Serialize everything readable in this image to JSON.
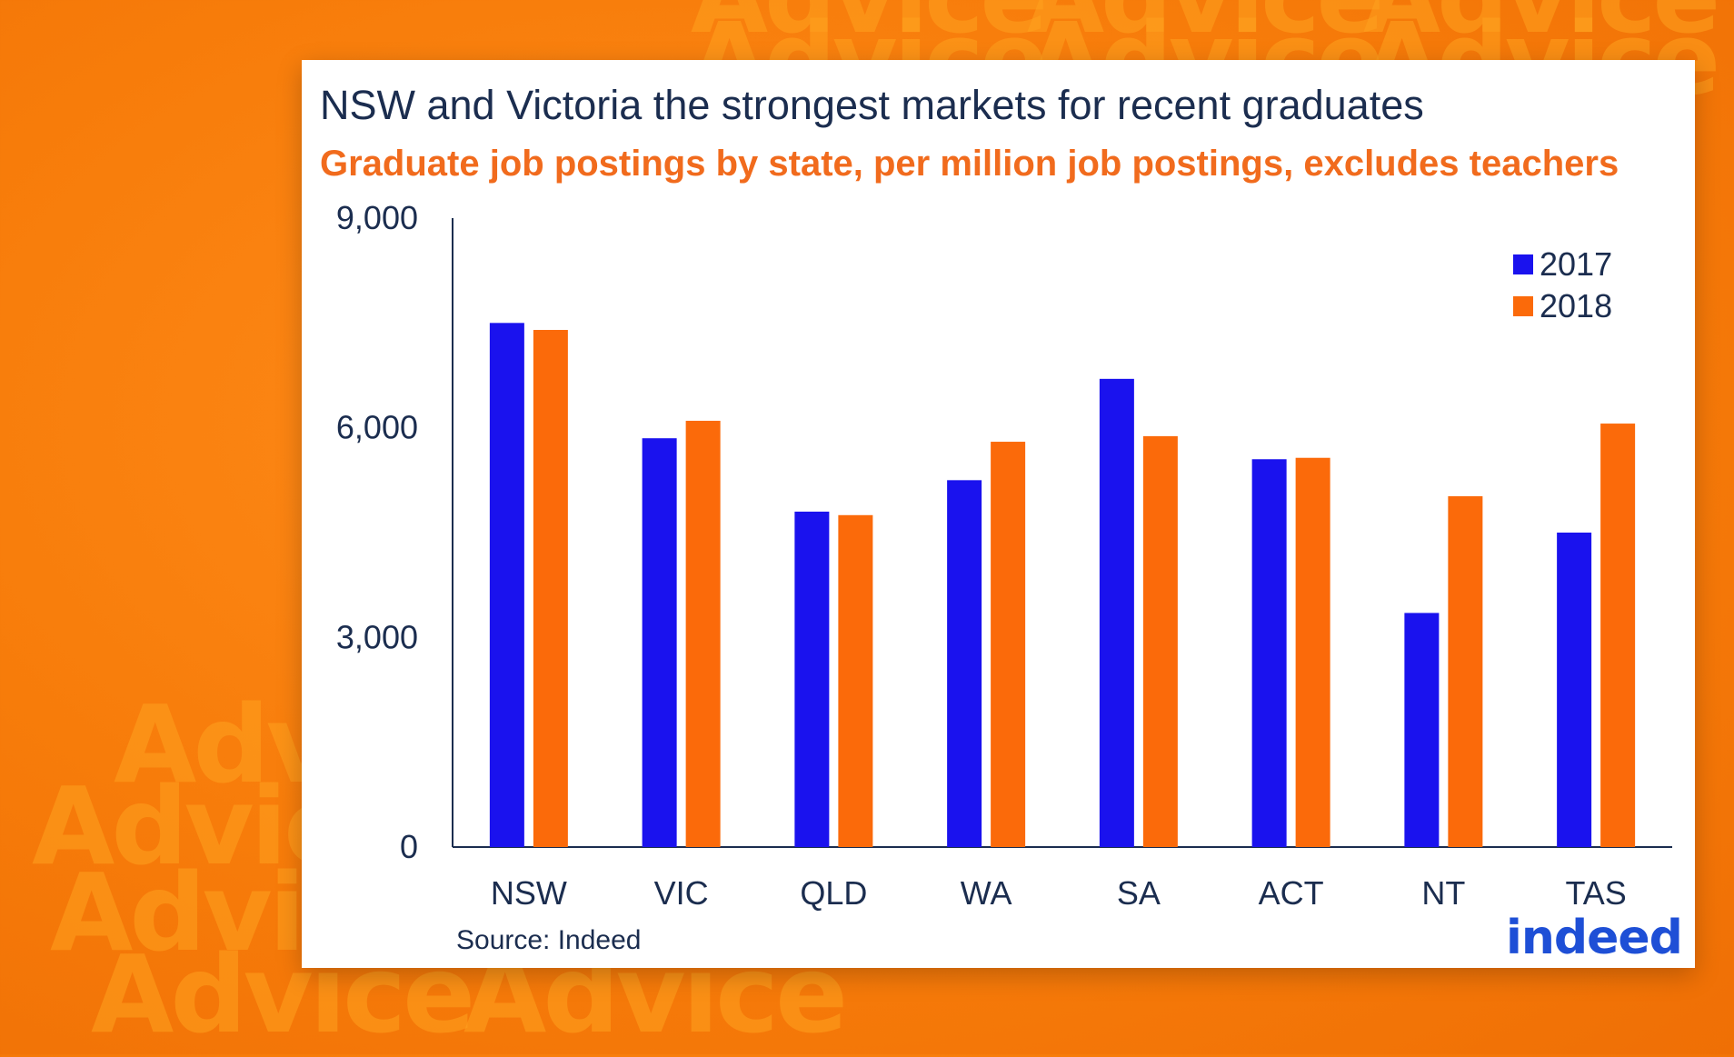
{
  "background_watermark": "Advice",
  "colors": {
    "series_2017": "#1a12ee",
    "series_2018": "#fb6a0a",
    "title": "#1b2d4f",
    "subtitle": "#f16b1d",
    "background": "#f77c0a"
  },
  "chart": {
    "title": "NSW and Victoria the strongest markets for recent graduates",
    "subtitle": "Graduate job postings by state, per million job postings, excludes teachers",
    "source": "Source: Indeed",
    "logo_text": "indeed"
  },
  "chart_data": {
    "type": "bar",
    "title": "NSW and Victoria the strongest markets for recent graduates",
    "subtitle": "Graduate job postings by state, per million job postings, excludes teachers",
    "categories": [
      "NSW",
      "VIC",
      "QLD",
      "WA",
      "SA",
      "ACT",
      "NT",
      "TAS"
    ],
    "series": [
      {
        "name": "2017",
        "values": [
          7500,
          5850,
          4800,
          5250,
          6700,
          5550,
          3350,
          4500
        ]
      },
      {
        "name": "2018",
        "values": [
          7400,
          6100,
          4750,
          5800,
          5880,
          5570,
          5020,
          6060
        ]
      }
    ],
    "ylim": [
      0,
      9000
    ],
    "yticks": [
      "0",
      "3,000",
      "6,000",
      "9,000"
    ],
    "ytick_values": [
      0,
      3000,
      6000,
      9000
    ],
    "xlabel": "",
    "ylabel": "",
    "legend_position": "top-right",
    "grid": false
  }
}
